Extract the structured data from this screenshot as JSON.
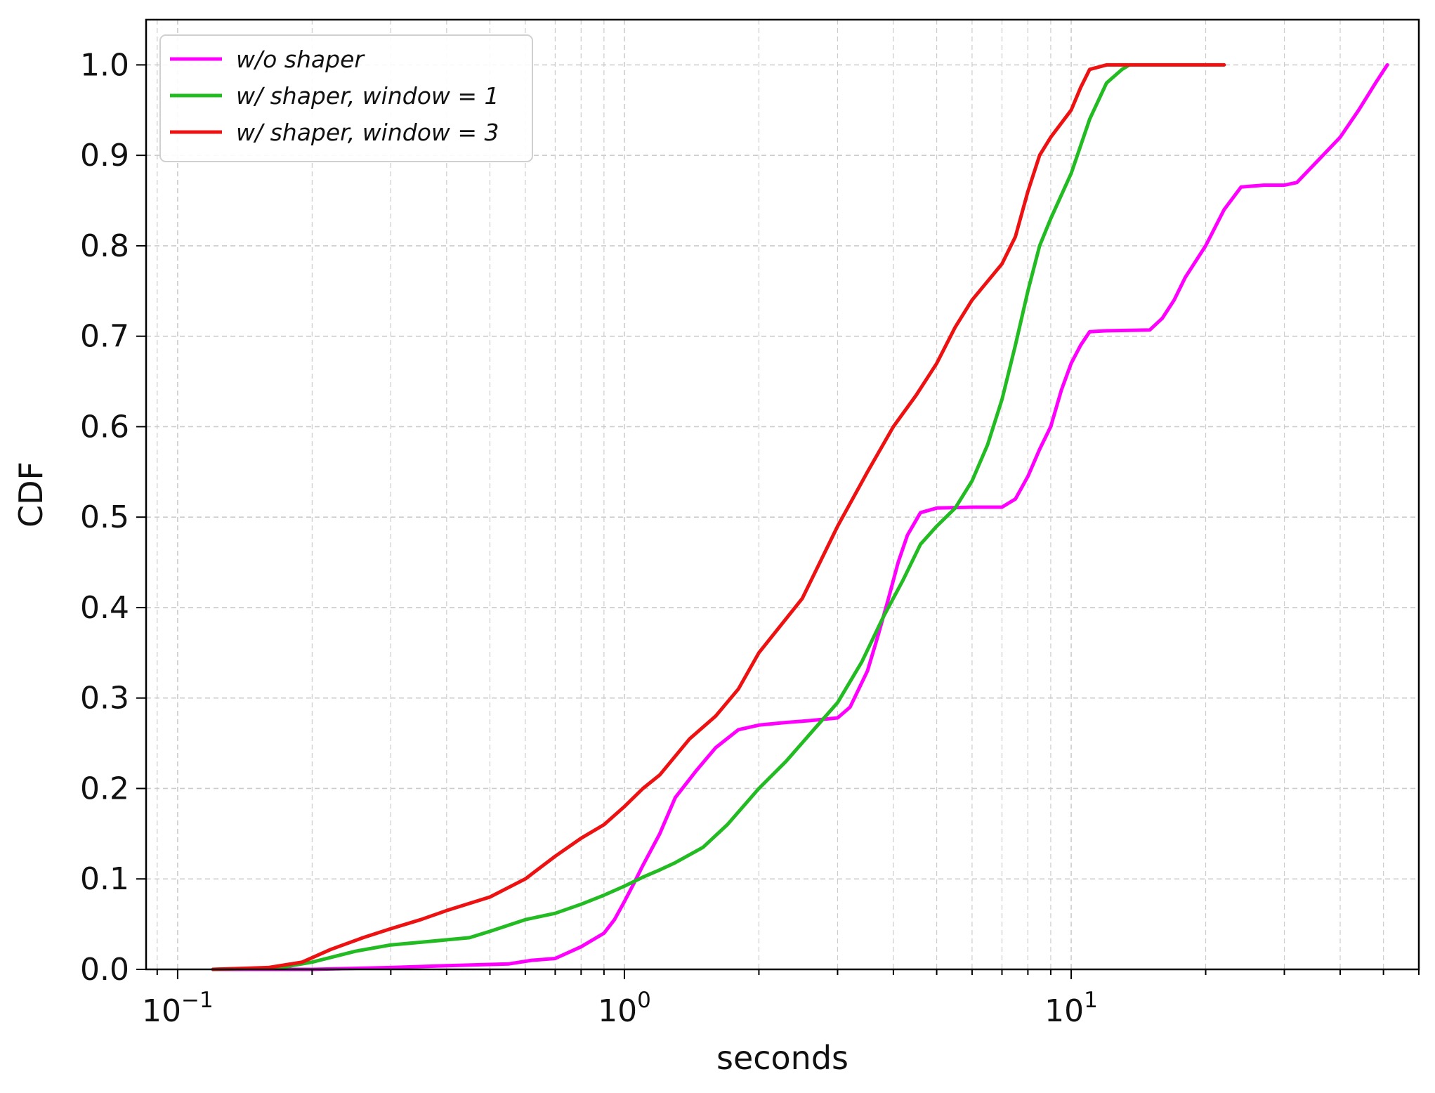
{
  "chart_data": {
    "type": "line",
    "xlabel": "seconds",
    "ylabel": "CDF",
    "xscale": "log",
    "xlim": [
      0.085,
      60
    ],
    "ylim": [
      0.0,
      1.05
    ],
    "grid": true,
    "legend_position": "top-left",
    "x_tick_labels": [
      {
        "value": 0.1,
        "base": "10",
        "exp": "−1"
      },
      {
        "value": 1,
        "base": "10",
        "exp": "0"
      },
      {
        "value": 10,
        "base": "10",
        "exp": "1"
      }
    ],
    "y_ticks": [
      0.0,
      0.1,
      0.2,
      0.3,
      0.4,
      0.5,
      0.6,
      0.7,
      0.8,
      0.9,
      1.0
    ],
    "y_tick_labels": [
      "0.0",
      "0.1",
      "0.2",
      "0.3",
      "0.4",
      "0.5",
      "0.6",
      "0.7",
      "0.8",
      "0.9",
      "1.0"
    ],
    "series": [
      {
        "name": "w/o shaper",
        "color": "#ff00ff",
        "points": [
          [
            0.12,
            0.0
          ],
          [
            0.2,
            0.0
          ],
          [
            0.3,
            0.002
          ],
          [
            0.4,
            0.004
          ],
          [
            0.55,
            0.006
          ],
          [
            0.62,
            0.01
          ],
          [
            0.7,
            0.012
          ],
          [
            0.8,
            0.025
          ],
          [
            0.9,
            0.04
          ],
          [
            0.95,
            0.055
          ],
          [
            1.0,
            0.075
          ],
          [
            1.05,
            0.095
          ],
          [
            1.1,
            0.115
          ],
          [
            1.2,
            0.15
          ],
          [
            1.3,
            0.19
          ],
          [
            1.45,
            0.22
          ],
          [
            1.6,
            0.245
          ],
          [
            1.8,
            0.265
          ],
          [
            2.0,
            0.27
          ],
          [
            2.3,
            0.273
          ],
          [
            2.6,
            0.275
          ],
          [
            3.0,
            0.278
          ],
          [
            3.2,
            0.29
          ],
          [
            3.5,
            0.33
          ],
          [
            3.7,
            0.37
          ],
          [
            3.9,
            0.41
          ],
          [
            4.1,
            0.45
          ],
          [
            4.3,
            0.48
          ],
          [
            4.6,
            0.505
          ],
          [
            5.0,
            0.51
          ],
          [
            6.0,
            0.511
          ],
          [
            7.0,
            0.511
          ],
          [
            7.5,
            0.52
          ],
          [
            8.0,
            0.545
          ],
          [
            8.5,
            0.575
          ],
          [
            9.0,
            0.6
          ],
          [
            9.5,
            0.64
          ],
          [
            10.0,
            0.67
          ],
          [
            10.5,
            0.69
          ],
          [
            11.0,
            0.705
          ],
          [
            12.0,
            0.706
          ],
          [
            15.0,
            0.707
          ],
          [
            16.0,
            0.72
          ],
          [
            17.0,
            0.74
          ],
          [
            18.0,
            0.765
          ],
          [
            20.0,
            0.8
          ],
          [
            22.0,
            0.84
          ],
          [
            24.0,
            0.865
          ],
          [
            27.0,
            0.867
          ],
          [
            30.0,
            0.867
          ],
          [
            32.0,
            0.87
          ],
          [
            35.0,
            0.89
          ],
          [
            40.0,
            0.92
          ],
          [
            44.0,
            0.95
          ],
          [
            48.0,
            0.98
          ],
          [
            51.0,
            1.0
          ]
        ]
      },
      {
        "name": "w/ shaper,  window = 1",
        "color": "#22bb22",
        "points": [
          [
            0.12,
            0.0
          ],
          [
            0.17,
            0.002
          ],
          [
            0.2,
            0.008
          ],
          [
            0.25,
            0.02
          ],
          [
            0.3,
            0.027
          ],
          [
            0.35,
            0.03
          ],
          [
            0.45,
            0.035
          ],
          [
            0.5,
            0.042
          ],
          [
            0.6,
            0.055
          ],
          [
            0.7,
            0.062
          ],
          [
            0.8,
            0.072
          ],
          [
            0.9,
            0.082
          ],
          [
            1.0,
            0.092
          ],
          [
            1.1,
            0.102
          ],
          [
            1.2,
            0.11
          ],
          [
            1.3,
            0.118
          ],
          [
            1.5,
            0.135
          ],
          [
            1.7,
            0.16
          ],
          [
            2.0,
            0.2
          ],
          [
            2.3,
            0.23
          ],
          [
            2.6,
            0.26
          ],
          [
            3.0,
            0.295
          ],
          [
            3.4,
            0.34
          ],
          [
            3.8,
            0.39
          ],
          [
            4.2,
            0.43
          ],
          [
            4.6,
            0.47
          ],
          [
            5.0,
            0.49
          ],
          [
            5.5,
            0.51
          ],
          [
            6.0,
            0.54
          ],
          [
            6.5,
            0.58
          ],
          [
            7.0,
            0.63
          ],
          [
            7.5,
            0.69
          ],
          [
            8.0,
            0.75
          ],
          [
            8.5,
            0.8
          ],
          [
            9.0,
            0.83
          ],
          [
            10.0,
            0.88
          ],
          [
            11.0,
            0.94
          ],
          [
            12.0,
            0.98
          ],
          [
            13.0,
            0.995
          ],
          [
            13.5,
            1.0
          ]
        ]
      },
      {
        "name": "w/ shaper,  window = 3",
        "color": "#ee1111",
        "points": [
          [
            0.12,
            0.0
          ],
          [
            0.16,
            0.002
          ],
          [
            0.19,
            0.008
          ],
          [
            0.22,
            0.022
          ],
          [
            0.26,
            0.035
          ],
          [
            0.3,
            0.045
          ],
          [
            0.35,
            0.055
          ],
          [
            0.4,
            0.065
          ],
          [
            0.5,
            0.08
          ],
          [
            0.6,
            0.1
          ],
          [
            0.7,
            0.125
          ],
          [
            0.8,
            0.145
          ],
          [
            0.9,
            0.16
          ],
          [
            1.0,
            0.18
          ],
          [
            1.1,
            0.2
          ],
          [
            1.2,
            0.215
          ],
          [
            1.4,
            0.255
          ],
          [
            1.6,
            0.28
          ],
          [
            1.8,
            0.31
          ],
          [
            2.0,
            0.35
          ],
          [
            2.5,
            0.41
          ],
          [
            3.0,
            0.49
          ],
          [
            3.5,
            0.55
          ],
          [
            4.0,
            0.6
          ],
          [
            4.5,
            0.635
          ],
          [
            5.0,
            0.67
          ],
          [
            5.5,
            0.71
          ],
          [
            6.0,
            0.74
          ],
          [
            7.0,
            0.78
          ],
          [
            7.5,
            0.81
          ],
          [
            8.0,
            0.86
          ],
          [
            8.5,
            0.9
          ],
          [
            9.0,
            0.92
          ],
          [
            10.0,
            0.95
          ],
          [
            10.5,
            0.975
          ],
          [
            11.0,
            0.995
          ],
          [
            12.0,
            1.0
          ],
          [
            16.0,
            1.0
          ],
          [
            22.0,
            1.0
          ]
        ]
      }
    ]
  }
}
